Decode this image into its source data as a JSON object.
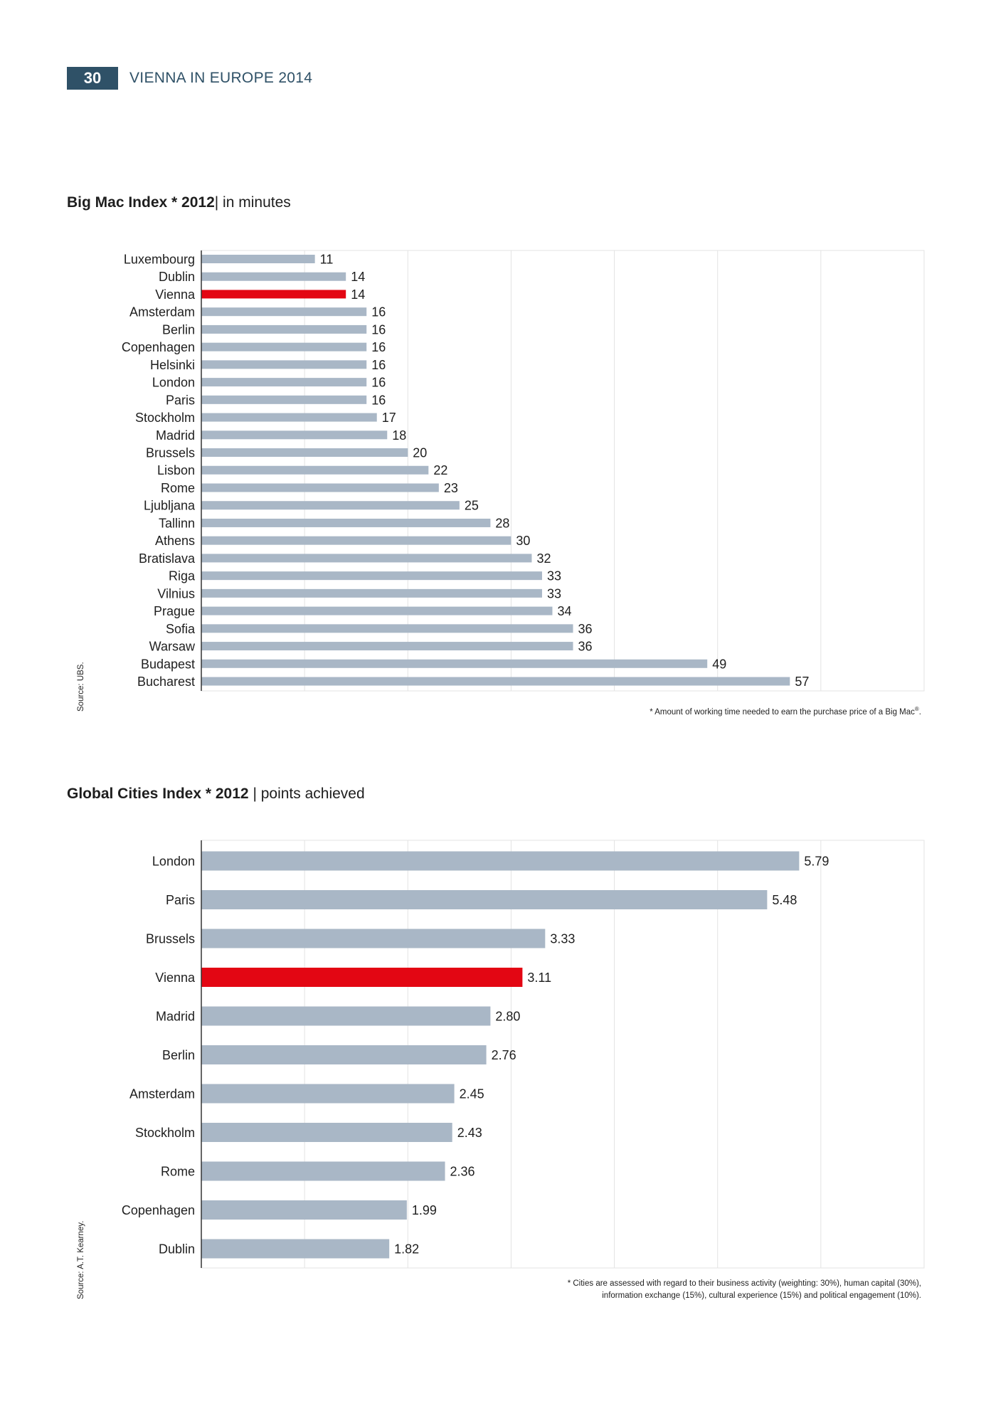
{
  "header": {
    "page_number": "30",
    "publication": "VIENNA IN EUROPE 2014"
  },
  "colors": {
    "bar": "#a9b7c6",
    "highlight": "#e30613",
    "grid": "#e3e3e3",
    "header_bg": "#2f5167"
  },
  "charts": {
    "bigmac": {
      "title_bold": "Big Mac Index * 2012",
      "title_rest": "| in minutes",
      "source": "Source: UBS.",
      "footnote": "* Amount of working time needed to earn the purchase price of a Big Mac",
      "footnote_mark": "®",
      "footnote_end": "."
    },
    "global": {
      "title_bold": "Global Cities Index * 2012",
      "title_rest": " | points achieved",
      "source": "Source: A.T. Kearney.",
      "footnote_line1": "* Cities are assessed with regard to their business activity (weighting: 30%), human capital (30%),",
      "footnote_line2": "information exchange (15%), cultural experience (15%) and political engagement (10%)."
    }
  },
  "chart_data": [
    {
      "type": "bar",
      "orientation": "horizontal",
      "title": "Big Mac Index * 2012| in minutes",
      "xlim": [
        0,
        70
      ],
      "grid": true,
      "highlight": "Vienna",
      "categories": [
        "Luxembourg",
        "Dublin",
        "Vienna",
        "Amsterdam",
        "Berlin",
        "Copenhagen",
        "Helsinki",
        "London",
        "Paris",
        "Stockholm",
        "Madrid",
        "Brussels",
        "Lisbon",
        "Rome",
        "Ljubljana",
        "Tallinn",
        "Athens",
        "Bratislava",
        "Riga",
        "Vilnius",
        "Prague",
        "Sofia",
        "Warsaw",
        "Budapest",
        "Bucharest"
      ],
      "values": [
        11,
        14,
        14,
        16,
        16,
        16,
        16,
        16,
        16,
        17,
        18,
        20,
        22,
        23,
        25,
        28,
        30,
        32,
        33,
        33,
        34,
        36,
        36,
        49,
        57
      ],
      "labels": [
        "11",
        "14",
        "14",
        "16",
        "16",
        "16",
        "16",
        "16",
        "16",
        "17",
        "18",
        "20",
        "22",
        "23",
        "25",
        "28",
        "30",
        "32",
        "33",
        "33",
        "34",
        "36",
        "36",
        "49",
        "57"
      ]
    },
    {
      "type": "bar",
      "orientation": "horizontal",
      "title": "Global Cities Index * 2012 | points achieved",
      "xlim": [
        0,
        7
      ],
      "grid": true,
      "highlight": "Vienna",
      "categories": [
        "London",
        "Paris",
        "Brussels",
        "Vienna",
        "Madrid",
        "Berlin",
        "Amsterdam",
        "Stockholm",
        "Rome",
        "Copenhagen",
        "Dublin"
      ],
      "values": [
        5.79,
        5.48,
        3.33,
        3.11,
        2.8,
        2.76,
        2.45,
        2.43,
        2.36,
        1.99,
        1.82
      ],
      "labels": [
        "5.79",
        "5.48",
        "3.33",
        "3.11",
        "2.80",
        "2.76",
        "2.45",
        "2.43",
        "2.36",
        "1.99",
        "1.82"
      ]
    }
  ]
}
